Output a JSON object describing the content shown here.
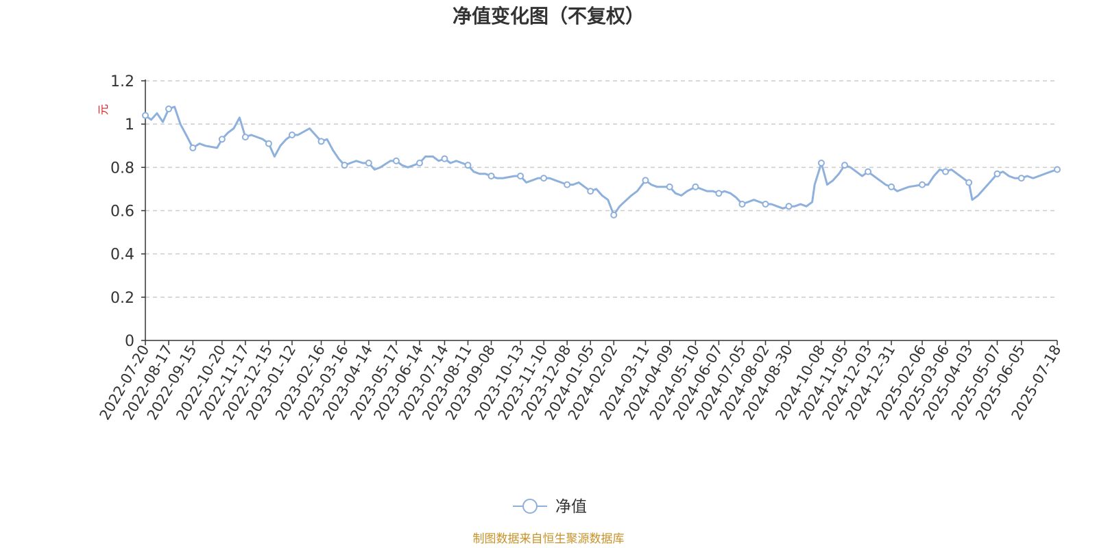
{
  "chart_data": {
    "type": "line",
    "title": "净值变化图（不复权）",
    "ylabel": "元",
    "xlabel": "",
    "ylim": [
      0,
      1.2
    ],
    "yticks": [
      "0",
      "0.2",
      "0.4",
      "0.6",
      "0.8",
      "1",
      "1.2"
    ],
    "grid": true,
    "legend_position": "bottom-center",
    "source_text": "制图数据来自恒生聚源数据库",
    "colors": {
      "series": "#8eb0dc",
      "grid": "#cccccc",
      "axis": "#333333",
      "source": "#c8922a",
      "ylabel": "#e02020"
    },
    "x_ticks": [
      "2022-07-20",
      "2022-08-17",
      "2022-09-15",
      "2022-10-20",
      "2022-11-17",
      "2022-12-15",
      "2023-01-12",
      "2023-02-16",
      "2023-03-16",
      "2023-04-14",
      "2023-05-17",
      "2023-06-14",
      "2023-07-14",
      "2023-08-11",
      "2023-09-08",
      "2023-10-13",
      "2023-11-10",
      "2023-12-08",
      "2024-01-05",
      "2024-02-02",
      "2024-03-11",
      "2024-04-09",
      "2024-05-10",
      "2024-06-07",
      "2024-07-05",
      "2024-08-02",
      "2024-08-30",
      "2024-10-08",
      "2024-11-05",
      "2024-12-03",
      "2024-12-31",
      "2025-02-06",
      "2025-03-06",
      "2025-04-03",
      "2025-05-07",
      "2025-06-05",
      "2025-07-18"
    ],
    "series": [
      {
        "name": "净值",
        "x": [
          "2022-07-20",
          "2022-07-27",
          "2022-08-03",
          "2022-08-10",
          "2022-08-17",
          "2022-08-24",
          "2022-08-31",
          "2022-09-07",
          "2022-09-15",
          "2022-09-23",
          "2022-09-30",
          "2022-10-14",
          "2022-10-20",
          "2022-10-27",
          "2022-11-03",
          "2022-11-10",
          "2022-11-17",
          "2022-11-24",
          "2022-12-01",
          "2022-12-08",
          "2022-12-15",
          "2022-12-22",
          "2022-12-29",
          "2023-01-05",
          "2023-01-12",
          "2023-01-19",
          "2023-02-02",
          "2023-02-09",
          "2023-02-16",
          "2023-02-23",
          "2023-03-02",
          "2023-03-09",
          "2023-03-16",
          "2023-03-23",
          "2023-03-30",
          "2023-04-07",
          "2023-04-14",
          "2023-04-21",
          "2023-04-28",
          "2023-05-10",
          "2023-05-17",
          "2023-05-24",
          "2023-05-31",
          "2023-06-07",
          "2023-06-14",
          "2023-06-21",
          "2023-06-30",
          "2023-07-07",
          "2023-07-14",
          "2023-07-21",
          "2023-07-28",
          "2023-08-04",
          "2023-08-11",
          "2023-08-18",
          "2023-08-25",
          "2023-09-01",
          "2023-09-08",
          "2023-09-15",
          "2023-09-22",
          "2023-10-06",
          "2023-10-13",
          "2023-10-20",
          "2023-10-27",
          "2023-11-03",
          "2023-11-10",
          "2023-11-17",
          "2023-11-24",
          "2023-12-01",
          "2023-12-08",
          "2023-12-15",
          "2023-12-22",
          "2023-12-29",
          "2024-01-05",
          "2024-01-12",
          "2024-01-19",
          "2024-01-26",
          "2024-02-02",
          "2024-02-09",
          "2024-02-23",
          "2024-03-01",
          "2024-03-11",
          "2024-03-18",
          "2024-03-25",
          "2024-04-01",
          "2024-04-09",
          "2024-04-16",
          "2024-04-23",
          "2024-04-30",
          "2024-05-10",
          "2024-05-17",
          "2024-05-24",
          "2024-05-31",
          "2024-06-07",
          "2024-06-14",
          "2024-06-21",
          "2024-06-28",
          "2024-07-05",
          "2024-07-12",
          "2024-07-19",
          "2024-07-26",
          "2024-08-02",
          "2024-08-09",
          "2024-08-16",
          "2024-08-23",
          "2024-08-30",
          "2024-09-06",
          "2024-09-13",
          "2024-09-20",
          "2024-09-27",
          "2024-09-30",
          "2024-10-08",
          "2024-10-15",
          "2024-10-22",
          "2024-10-29",
          "2024-11-05",
          "2024-11-12",
          "2024-11-19",
          "2024-11-26",
          "2024-12-03",
          "2024-12-10",
          "2024-12-17",
          "2024-12-24",
          "2024-12-31",
          "2025-01-07",
          "2025-01-14",
          "2025-01-21",
          "2025-02-06",
          "2025-02-13",
          "2025-02-20",
          "2025-02-27",
          "2025-03-06",
          "2025-03-13",
          "2025-03-20",
          "2025-03-27",
          "2025-04-03",
          "2025-04-07",
          "2025-04-14",
          "2025-04-21",
          "2025-04-28",
          "2025-05-07",
          "2025-05-14",
          "2025-05-21",
          "2025-05-28",
          "2025-06-05",
          "2025-06-12",
          "2025-06-19",
          "2025-06-26",
          "2025-07-03",
          "2025-07-10",
          "2025-07-18"
        ],
        "values": [
          1.04,
          1.02,
          1.05,
          1.01,
          1.07,
          1.08,
          1.0,
          0.95,
          0.89,
          0.91,
          0.9,
          0.89,
          0.93,
          0.96,
          0.98,
          1.03,
          0.94,
          0.95,
          0.94,
          0.93,
          0.91,
          0.85,
          0.9,
          0.93,
          0.95,
          0.95,
          0.98,
          0.95,
          0.92,
          0.93,
          0.88,
          0.84,
          0.81,
          0.82,
          0.83,
          0.82,
          0.82,
          0.79,
          0.8,
          0.83,
          0.83,
          0.81,
          0.8,
          0.81,
          0.82,
          0.85,
          0.85,
          0.83,
          0.84,
          0.82,
          0.83,
          0.82,
          0.81,
          0.78,
          0.77,
          0.77,
          0.76,
          0.75,
          0.75,
          0.76,
          0.76,
          0.73,
          0.74,
          0.75,
          0.75,
          0.75,
          0.74,
          0.73,
          0.72,
          0.72,
          0.73,
          0.71,
          0.69,
          0.7,
          0.67,
          0.65,
          0.58,
          0.62,
          0.67,
          0.69,
          0.74,
          0.72,
          0.71,
          0.71,
          0.71,
          0.68,
          0.67,
          0.69,
          0.71,
          0.7,
          0.69,
          0.69,
          0.68,
          0.69,
          0.68,
          0.66,
          0.63,
          0.64,
          0.65,
          0.64,
          0.63,
          0.63,
          0.62,
          0.61,
          0.62,
          0.62,
          0.63,
          0.62,
          0.64,
          0.72,
          0.82,
          0.72,
          0.74,
          0.77,
          0.81,
          0.8,
          0.78,
          0.76,
          0.78,
          0.76,
          0.74,
          0.72,
          0.71,
          0.69,
          0.7,
          0.71,
          0.72,
          0.72,
          0.76,
          0.79,
          0.78,
          0.79,
          0.77,
          0.75,
          0.73,
          0.65,
          0.67,
          0.7,
          0.73,
          0.77,
          0.78,
          0.76,
          0.75,
          0.75,
          0.76,
          0.75,
          0.76,
          0.77,
          0.78,
          0.79
        ],
        "markers": [
          "2022-07-20",
          "2022-08-17",
          "2022-09-15",
          "2022-10-20",
          "2022-11-17",
          "2022-12-15",
          "2023-01-12",
          "2023-02-16",
          "2023-03-16",
          "2023-04-14",
          "2023-05-17",
          "2023-06-14",
          "2023-07-14",
          "2023-08-11",
          "2023-09-08",
          "2023-10-13",
          "2023-11-10",
          "2023-12-08",
          "2024-01-05",
          "2024-02-02",
          "2024-03-11",
          "2024-04-09",
          "2024-05-10",
          "2024-06-07",
          "2024-07-05",
          "2024-08-02",
          "2024-08-30",
          "2024-10-08",
          "2024-11-05",
          "2024-12-03",
          "2024-12-31",
          "2025-02-06",
          "2025-03-06",
          "2025-04-03",
          "2025-05-07",
          "2025-06-05",
          "2025-07-18"
        ]
      }
    ]
  }
}
